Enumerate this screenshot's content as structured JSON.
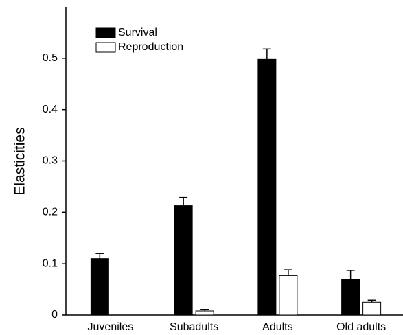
{
  "chart_data": {
    "type": "bar",
    "ylabel": "Elasticities",
    "categories": [
      "Juveniles",
      "Subadults",
      "Adults",
      "Old adults"
    ],
    "series": [
      {
        "name": "Survival",
        "color": "#000000",
        "values": [
          0.11,
          0.213,
          0.498,
          0.069
        ],
        "errors": [
          0.01,
          0.016,
          0.02,
          0.018
        ]
      },
      {
        "name": "Reproduction",
        "color": "#ffffff",
        "values": [
          null,
          0.008,
          0.077,
          0.025
        ],
        "errors": [
          null,
          0.003,
          0.011,
          0.004
        ]
      }
    ],
    "ylim": [
      0,
      0.6
    ],
    "yticks": [
      0,
      0.1,
      0.2,
      0.3,
      0.4,
      0.5
    ],
    "legend": "upper-left",
    "grid": false
  }
}
